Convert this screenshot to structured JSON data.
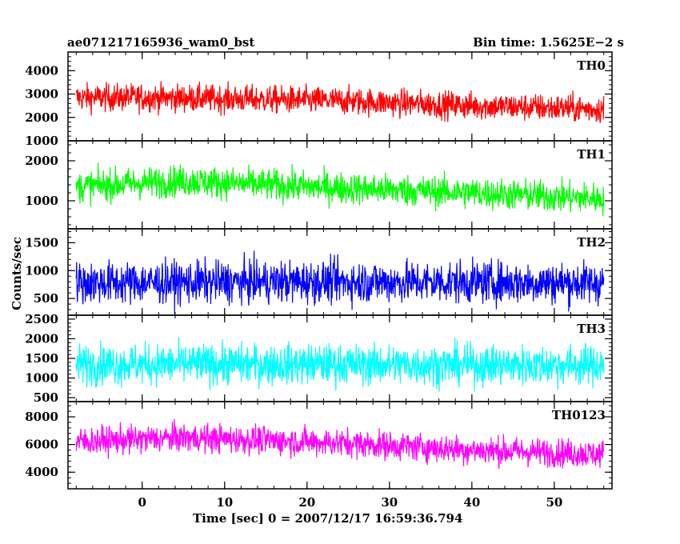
{
  "header": {
    "title": "ae071217165936_wam0_bst",
    "bin_time": "Bin time: 1.5625E−2 s"
  },
  "chart_data": {
    "type": "line",
    "title": "ae071217165936_wam0_bst",
    "subtitle": "Bin time: 1.5625E−2 s",
    "xlabel": "Time [sec] 0 = 2007/12/17 16:59:36.794",
    "ylabel": "Counts/sec",
    "xlim": [
      -9,
      57
    ],
    "data_range": [
      -8,
      56
    ],
    "xticks": [
      0,
      10,
      20,
      30,
      40,
      50
    ],
    "grid": false,
    "panels": [
      {
        "name": "TH0",
        "color": "#ff0000",
        "ylim": [
          1000,
          4800
        ],
        "yticks": [
          1000,
          2000,
          3000,
          4000
        ],
        "trend": [
          [
            -8,
            2850
          ],
          [
            0,
            2850
          ],
          [
            10,
            2800
          ],
          [
            25,
            2700
          ],
          [
            40,
            2500
          ],
          [
            56,
            2350
          ]
        ],
        "amplitude": 750
      },
      {
        "name": "TH1",
        "color": "#00ff00",
        "ylim": [
          300,
          2500
        ],
        "yticks": [
          1000,
          2000
        ],
        "trend": [
          [
            -8,
            1350
          ],
          [
            5,
            1500
          ],
          [
            20,
            1350
          ],
          [
            40,
            1200
          ],
          [
            56,
            1050
          ]
        ],
        "amplitude": 500
      },
      {
        "name": "TH2",
        "color": "#0000ff",
        "ylim": [
          200,
          1750
        ],
        "yticks": [
          500,
          1000,
          1500
        ],
        "trend": [
          [
            -8,
            780
          ],
          [
            20,
            800
          ],
          [
            40,
            790
          ],
          [
            56,
            780
          ]
        ],
        "amplitude": 480
      },
      {
        "name": "TH3",
        "color": "#00ffff",
        "ylim": [
          400,
          2600
        ],
        "yticks": [
          500,
          1000,
          1500,
          2000,
          2500
        ],
        "trend": [
          [
            -8,
            1350
          ],
          [
            20,
            1350
          ],
          [
            40,
            1330
          ],
          [
            56,
            1330
          ]
        ],
        "amplitude": 650
      },
      {
        "name": "TH0123",
        "color": "#ff00ff",
        "ylim": [
          2800,
          9100
        ],
        "yticks": [
          4000,
          6000,
          8000
        ],
        "trend": [
          [
            -8,
            6200
          ],
          [
            5,
            6500
          ],
          [
            25,
            6100
          ],
          [
            40,
            5600
          ],
          [
            56,
            5300
          ]
        ],
        "amplitude": 1300
      }
    ]
  }
}
